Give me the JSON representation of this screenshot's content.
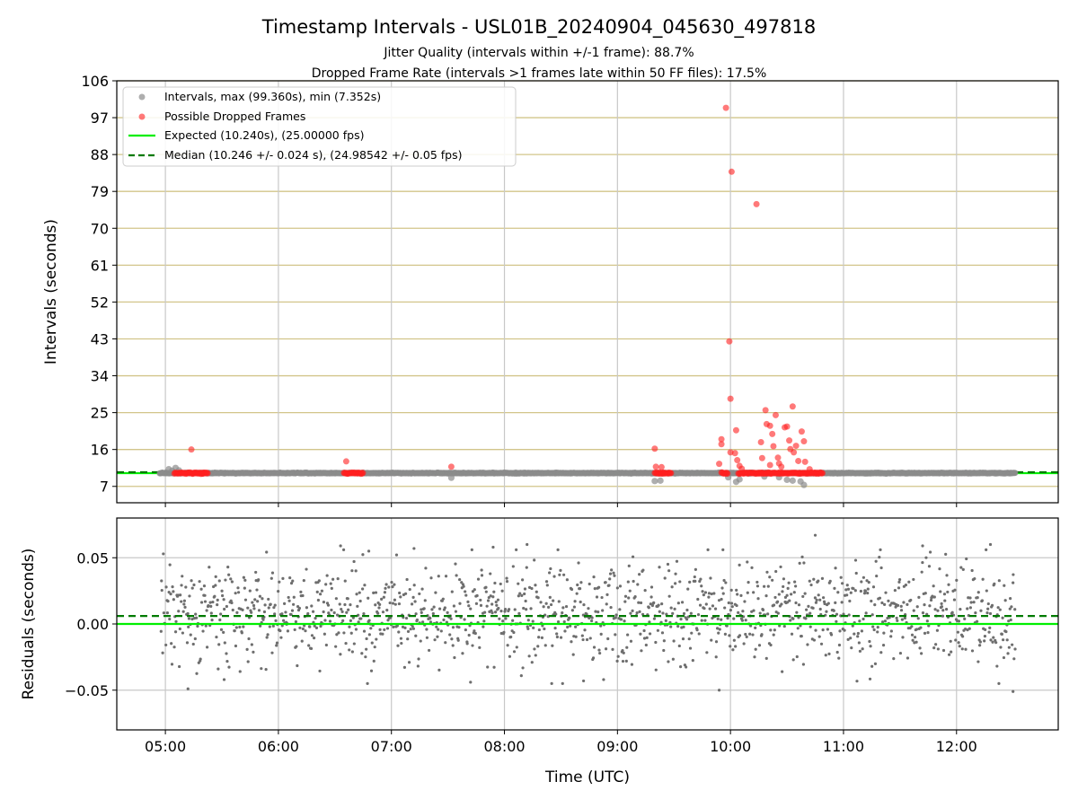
{
  "chart_data": [
    {
      "type": "scatter",
      "title": "Timestamp Intervals - USL01B_20240904_045630_497818",
      "subtitle_lines": [
        "Jitter Quality (intervals within +/-1 frame): 88.7%",
        "Dropped Frame Rate (intervals >1 frames late within 50 FF files): 17.5%"
      ],
      "ylabel": "Intervals (seconds)",
      "ylim": [
        3,
        106
      ],
      "yticks": [
        7,
        16,
        25,
        34,
        43,
        52,
        61,
        70,
        79,
        88,
        97,
        106
      ],
      "xlim_hours": [
        4.57,
        12.9
      ],
      "grid": true,
      "legend_position": "top-left",
      "legend": [
        "Intervals, max (99.360s), min (7.352s)",
        "Possible Dropped Frames",
        "Expected (10.240s), (25.00000 fps)",
        "Median (10.246 +/- 0.024 s), (24.98542 +/- 0.05 fps)"
      ],
      "expected_line": 10.24,
      "median_line": 10.246,
      "interval_span_hours": [
        4.95,
        12.52
      ],
      "interval_baseline": 10.24,
      "gray_points": [
        [
          4.97,
          10.3
        ],
        [
          5.03,
          11.2
        ],
        [
          5.06,
          10.8
        ],
        [
          5.09,
          11.5
        ],
        [
          5.12,
          10.9
        ],
        [
          7.53,
          9.1
        ],
        [
          9.33,
          8.3
        ],
        [
          9.38,
          8.4
        ],
        [
          9.98,
          9.2
        ],
        [
          10.05,
          8.1
        ],
        [
          10.08,
          8.7
        ],
        [
          10.3,
          9.4
        ],
        [
          10.43,
          9.2
        ],
        [
          10.5,
          8.6
        ],
        [
          10.55,
          8.4
        ],
        [
          10.62,
          8.2
        ],
        [
          10.65,
          7.35
        ]
      ],
      "red_clusters": [
        [
          5.08,
          5.38
        ],
        [
          6.58,
          6.75
        ],
        [
          9.33,
          9.48
        ],
        [
          9.92,
          9.98
        ],
        [
          10.07,
          10.82
        ]
      ],
      "red_points": [
        [
          5.23,
          16.0
        ],
        [
          6.6,
          13.1
        ],
        [
          7.53,
          11.8
        ],
        [
          9.33,
          16.2
        ],
        [
          9.34,
          11.8
        ],
        [
          9.39,
          11.7
        ],
        [
          9.92,
          18.5
        ],
        [
          9.92,
          17.3
        ],
        [
          9.9,
          12.5
        ],
        [
          9.96,
          99.4
        ],
        [
          9.99,
          42.4
        ],
        [
          10.0,
          28.4
        ],
        [
          10.0,
          15.3
        ],
        [
          10.01,
          83.8
        ],
        [
          10.04,
          15.1
        ],
        [
          10.05,
          20.7
        ],
        [
          10.06,
          13.4
        ],
        [
          10.08,
          12.0
        ],
        [
          10.1,
          11.3
        ],
        [
          10.23,
          75.9
        ],
        [
          10.27,
          17.8
        ],
        [
          10.28,
          13.9
        ],
        [
          10.31,
          25.6
        ],
        [
          10.32,
          22.2
        ],
        [
          10.35,
          21.8
        ],
        [
          10.37,
          19.8
        ],
        [
          10.38,
          16.8
        ],
        [
          10.4,
          24.4
        ],
        [
          10.42,
          14.0
        ],
        [
          10.43,
          12.6
        ],
        [
          10.48,
          21.4
        ],
        [
          10.5,
          21.6
        ],
        [
          10.52,
          18.2
        ],
        [
          10.53,
          16.1
        ],
        [
          10.55,
          26.5
        ],
        [
          10.56,
          15.3
        ],
        [
          10.58,
          16.9
        ],
        [
          10.6,
          13.2
        ],
        [
          10.63,
          20.4
        ],
        [
          10.65,
          18.0
        ],
        [
          10.66,
          13.0
        ],
        [
          10.7,
          11.2
        ],
        [
          10.45,
          11.8
        ],
        [
          10.35,
          12.2
        ]
      ]
    },
    {
      "type": "scatter",
      "ylabel": "Residuals (seconds)",
      "xlabel": "Time (UTC)",
      "ylim": [
        -0.08,
        0.08
      ],
      "yticks": [
        0.05,
        0.0,
        -0.05
      ],
      "ytick_labels": [
        "0.05",
        "0.00",
        "−0.05"
      ],
      "xticks_hours": [
        5,
        6,
        7,
        8,
        9,
        10,
        11,
        12
      ],
      "xtick_labels": [
        "05:00",
        "06:00",
        "07:00",
        "08:00",
        "09:00",
        "10:00",
        "11:00",
        "12:00"
      ],
      "grid": true,
      "expected_line": 0.0,
      "median_line": 0.006,
      "residual_span_hours": [
        4.96,
        12.52
      ],
      "residual_count": 1400,
      "residual_mean": 0.008,
      "residual_std": 0.019,
      "residual_outliers": [
        [
          5.2,
          -0.049
        ],
        [
          5.52,
          -0.042
        ],
        [
          6.55,
          0.059
        ],
        [
          6.8,
          0.055
        ],
        [
          7.2,
          0.057
        ],
        [
          7.9,
          0.058
        ],
        [
          8.2,
          0.06
        ],
        [
          8.7,
          -0.043
        ],
        [
          9.9,
          -0.05
        ],
        [
          10.75,
          0.067
        ],
        [
          11.7,
          0.059
        ],
        [
          12.3,
          0.06
        ],
        [
          12.5,
          -0.051
        ],
        [
          7.7,
          -0.044
        ]
      ]
    }
  ],
  "colors": {
    "gray_points": "#8c8c8c",
    "red_points": "#ff2020",
    "expected_line": "#00ee00",
    "median_line": "#007a00",
    "hgrid_top": "#d2c58a",
    "grid": "#c8c8c8",
    "residual_points": "#6e6e6e"
  }
}
